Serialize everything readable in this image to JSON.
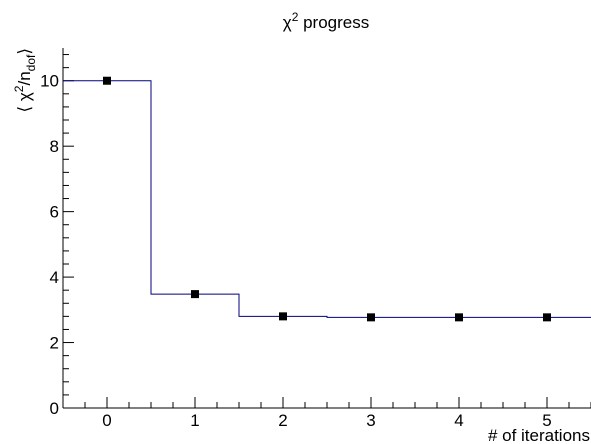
{
  "chart_data": {
    "type": "line",
    "title_main": "χ",
    "title_sup": "2",
    "title_rest": " progress",
    "xlabel": "# of iterations",
    "ylabel_parts": {
      "open": "⟨ χ",
      "sup": "2",
      "mid": "/n",
      "sub": "dof",
      "close": "⟩"
    },
    "xlim": [
      -0.5,
      5.5
    ],
    "ylim": [
      0,
      11
    ],
    "x_ticks": [
      0,
      1,
      2,
      3,
      4,
      5
    ],
    "y_ticks": [
      0,
      2,
      4,
      6,
      8,
      10
    ],
    "grid": false,
    "series": [
      {
        "x": [
          0,
          1,
          2,
          3,
          4,
          5
        ],
        "y": [
          10.0,
          3.48,
          2.8,
          2.77,
          2.77,
          2.77
        ],
        "line_color": "#00007f",
        "marker_color": "#000000",
        "style": "step"
      }
    ]
  }
}
